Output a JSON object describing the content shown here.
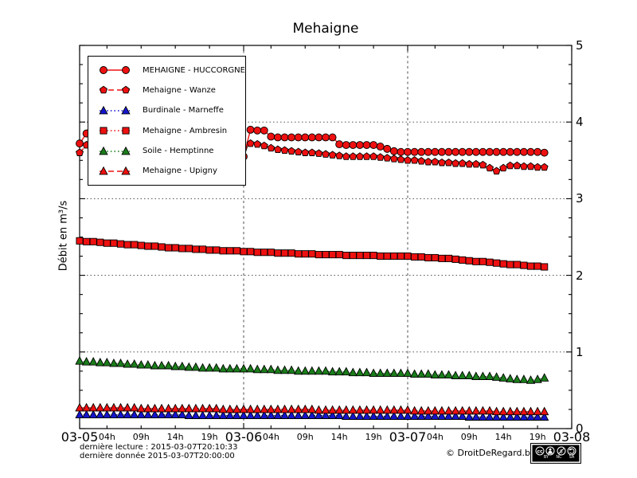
{
  "footer": {
    "last_read": "dernière lecture : 2015-03-07T20:10:33",
    "last_data": "dernière donnée  2015-03-07T20:00:00",
    "copyright": "© DroitDeRegard.be",
    "license_labels": [
      "BY",
      "NC",
      "SA"
    ]
  },
  "chart_data": {
    "type": "line",
    "title": "Mehaigne",
    "ylabel": "Débit en m³/s",
    "ylim": [
      0,
      5
    ],
    "y_major_ticks": [
      0,
      1,
      2,
      3,
      4,
      5
    ],
    "y_minor_step": 0.25,
    "x_unit": "hours since 2015-03-05T00:00",
    "x_range_hours": [
      0,
      72
    ],
    "x_major_ticks": [
      {
        "hour": 0,
        "label": "03-05"
      },
      {
        "hour": 24,
        "label": "03-06"
      },
      {
        "hour": 48,
        "label": "03-07"
      },
      {
        "hour": 72,
        "label": "03-08"
      }
    ],
    "x_minor_ticks_hours_each_day": [
      4,
      9,
      14,
      19
    ],
    "x_minor_tick_labels": [
      "04h",
      "09h",
      "14h",
      "19h"
    ],
    "grid": {
      "horizontal": [
        1,
        2,
        3,
        4
      ],
      "vertical_hours": [
        24,
        48
      ]
    },
    "legend_position": "upper left",
    "series": [
      {
        "name": "MEHAIGNE - HUCCORGNE",
        "color": "#ee1010",
        "marker": "circle",
        "line_style": "solid",
        "values": [
          3.72,
          3.85,
          4.1,
          4.42,
          4.3,
          4.2,
          4.12,
          4.05,
          4.0,
          3.95,
          3.9,
          3.86,
          3.82,
          3.79,
          3.76,
          3.73,
          3.7,
          3.68,
          3.66,
          3.64,
          3.62,
          3.6,
          3.58,
          3.56,
          3.55,
          3.9,
          3.89,
          3.89,
          3.81,
          3.8,
          3.8,
          3.8,
          3.8,
          3.8,
          3.8,
          3.8,
          3.8,
          3.8,
          3.71,
          3.7,
          3.7,
          3.7,
          3.7,
          3.7,
          3.68,
          3.65,
          3.62,
          3.61,
          3.61,
          3.61,
          3.61,
          3.61,
          3.61,
          3.61,
          3.61,
          3.61,
          3.61,
          3.61,
          3.61,
          3.61,
          3.61,
          3.61,
          3.61,
          3.61,
          3.61,
          3.61,
          3.61,
          3.61,
          3.6
        ]
      },
      {
        "name": "Mehaigne - Wanze",
        "color": "#ee1010",
        "marker": "pentagon",
        "line_style": "dashed",
        "values": [
          3.6,
          3.7,
          3.9,
          4.05,
          3.98,
          3.93,
          3.89,
          3.85,
          3.82,
          3.8,
          3.78,
          3.76,
          3.75,
          3.73,
          3.72,
          3.71,
          3.7,
          3.7,
          3.69,
          3.68,
          3.68,
          3.67,
          3.67,
          3.66,
          3.66,
          3.72,
          3.71,
          3.69,
          3.66,
          3.64,
          3.63,
          3.62,
          3.61,
          3.6,
          3.6,
          3.59,
          3.58,
          3.57,
          3.56,
          3.55,
          3.55,
          3.55,
          3.55,
          3.55,
          3.54,
          3.53,
          3.52,
          3.51,
          3.5,
          3.5,
          3.49,
          3.48,
          3.48,
          3.47,
          3.47,
          3.46,
          3.46,
          3.45,
          3.45,
          3.44,
          3.4,
          3.36,
          3.4,
          3.43,
          3.43,
          3.42,
          3.42,
          3.41,
          3.41
        ]
      },
      {
        "name": "Burdinale - Marneffe",
        "color": "#1414cc",
        "marker": "triangle",
        "line_style": "dotted",
        "values": [
          0.18,
          0.18,
          0.18,
          0.18,
          0.18,
          0.18,
          0.18,
          0.18,
          0.18,
          0.18,
          0.18,
          0.18,
          0.18,
          0.18,
          0.18,
          0.18,
          0.17,
          0.17,
          0.17,
          0.17,
          0.17,
          0.17,
          0.17,
          0.17,
          0.17,
          0.17,
          0.17,
          0.17,
          0.17,
          0.17,
          0.17,
          0.17,
          0.17,
          0.17,
          0.17,
          0.17,
          0.17,
          0.17,
          0.17,
          0.16,
          0.16,
          0.16,
          0.16,
          0.16,
          0.16,
          0.16,
          0.16,
          0.16,
          0.16,
          0.16,
          0.16,
          0.16,
          0.16,
          0.16,
          0.16,
          0.16,
          0.16,
          0.15,
          0.15,
          0.15,
          0.15,
          0.15,
          0.15,
          0.15,
          0.15,
          0.15,
          0.15,
          0.15,
          0.15
        ]
      },
      {
        "name": "Mehaigne - Ambresin",
        "color": "#ee1010",
        "marker": "square",
        "line_style": "dotted",
        "values": [
          2.45,
          2.44,
          2.44,
          2.43,
          2.42,
          2.42,
          2.41,
          2.4,
          2.4,
          2.39,
          2.38,
          2.38,
          2.37,
          2.36,
          2.36,
          2.35,
          2.35,
          2.34,
          2.34,
          2.33,
          2.33,
          2.32,
          2.32,
          2.32,
          2.31,
          2.31,
          2.3,
          2.3,
          2.3,
          2.29,
          2.29,
          2.29,
          2.28,
          2.28,
          2.28,
          2.27,
          2.27,
          2.27,
          2.27,
          2.26,
          2.26,
          2.26,
          2.26,
          2.26,
          2.25,
          2.25,
          2.25,
          2.25,
          2.25,
          2.24,
          2.24,
          2.23,
          2.23,
          2.22,
          2.22,
          2.21,
          2.2,
          2.19,
          2.18,
          2.18,
          2.17,
          2.16,
          2.15,
          2.14,
          2.14,
          2.13,
          2.12,
          2.12,
          2.11
        ]
      },
      {
        "name": "Soile - Hemptinne",
        "color": "#1a7d1a",
        "marker": "triangle",
        "line_style": "dotted",
        "values": [
          0.88,
          0.87,
          0.87,
          0.86,
          0.86,
          0.85,
          0.85,
          0.84,
          0.84,
          0.83,
          0.83,
          0.82,
          0.82,
          0.82,
          0.81,
          0.81,
          0.8,
          0.8,
          0.79,
          0.79,
          0.79,
          0.78,
          0.78,
          0.78,
          0.78,
          0.78,
          0.77,
          0.77,
          0.77,
          0.76,
          0.76,
          0.76,
          0.75,
          0.75,
          0.75,
          0.75,
          0.75,
          0.74,
          0.74,
          0.74,
          0.73,
          0.73,
          0.73,
          0.72,
          0.72,
          0.72,
          0.72,
          0.72,
          0.72,
          0.71,
          0.71,
          0.71,
          0.7,
          0.7,
          0.7,
          0.69,
          0.69,
          0.69,
          0.68,
          0.68,
          0.68,
          0.67,
          0.66,
          0.65,
          0.64,
          0.64,
          0.63,
          0.64,
          0.66
        ]
      },
      {
        "name": "Mehaigne - Upigny",
        "color": "#ee1010",
        "marker": "triangle",
        "line_style": "dashed",
        "values": [
          0.27,
          0.27,
          0.27,
          0.27,
          0.27,
          0.27,
          0.27,
          0.27,
          0.27,
          0.26,
          0.26,
          0.26,
          0.26,
          0.26,
          0.26,
          0.26,
          0.26,
          0.26,
          0.26,
          0.26,
          0.26,
          0.25,
          0.25,
          0.25,
          0.25,
          0.25,
          0.25,
          0.25,
          0.25,
          0.25,
          0.25,
          0.25,
          0.25,
          0.25,
          0.25,
          0.24,
          0.24,
          0.24,
          0.24,
          0.24,
          0.24,
          0.24,
          0.24,
          0.24,
          0.24,
          0.24,
          0.24,
          0.24,
          0.24,
          0.23,
          0.23,
          0.23,
          0.23,
          0.23,
          0.23,
          0.23,
          0.23,
          0.23,
          0.23,
          0.23,
          0.23,
          0.22,
          0.22,
          0.22,
          0.22,
          0.22,
          0.22,
          0.22,
          0.22
        ]
      }
    ]
  }
}
